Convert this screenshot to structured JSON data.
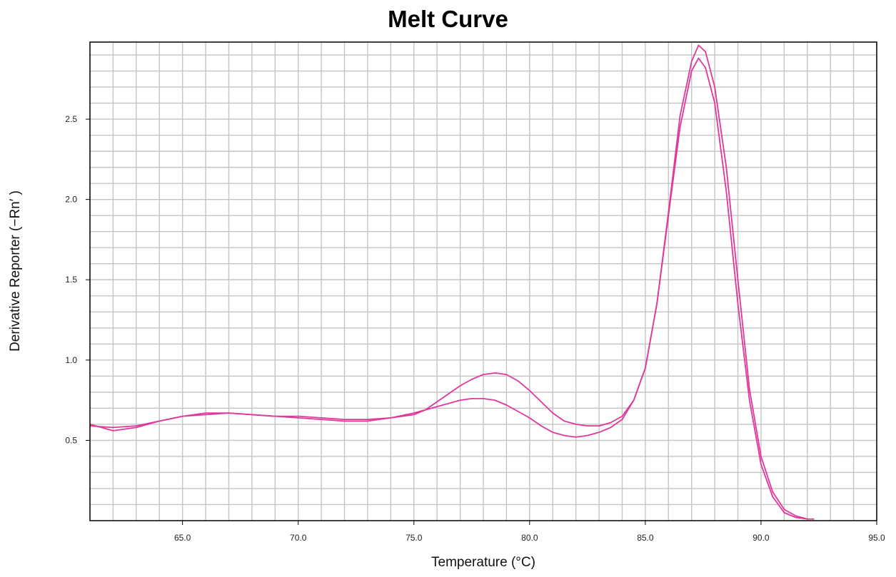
{
  "chart_data": {
    "type": "line",
    "title": "Melt Curve",
    "xlabel": "Temperature (°C)",
    "ylabel": "Derivative Reporter (−Rn′ )",
    "xlim": [
      61.0,
      95.0
    ],
    "ylim": [
      0.0,
      2.98
    ],
    "xticks": [
      65.0,
      70.0,
      75.0,
      80.0,
      85.0,
      90.0,
      95.0
    ],
    "xtick_labels": [
      "65.0",
      "70.0",
      "75.0",
      "80.0",
      "85.0",
      "90.0",
      "95.0"
    ],
    "yticks": [
      0.5,
      1.0,
      1.5,
      2.0,
      2.5
    ],
    "ytick_labels": [
      "0.5",
      "1.0",
      "1.5",
      "2.0",
      "2.5"
    ],
    "grid": true,
    "line_color": "#e0389a",
    "series": [
      {
        "x": [
          61.0,
          62.0,
          63.0,
          64.0,
          65.0,
          66.0,
          67.0,
          68.0,
          69.0,
          70.0,
          71.0,
          72.0,
          73.0,
          74.0,
          75.0,
          75.5,
          76.0,
          76.5,
          77.0,
          77.5,
          78.0,
          78.5,
          79.0,
          79.5,
          80.0,
          80.5,
          81.0,
          81.5,
          82.0,
          82.5,
          83.0,
          83.5,
          84.0,
          84.5,
          85.0,
          85.5,
          86.0,
          86.5,
          87.0,
          87.3,
          87.6,
          88.0,
          88.5,
          89.0,
          89.5,
          90.0,
          90.5,
          91.0,
          91.5,
          92.0
        ],
        "y": [
          0.6,
          0.56,
          0.58,
          0.62,
          0.65,
          0.66,
          0.67,
          0.66,
          0.65,
          0.64,
          0.63,
          0.62,
          0.62,
          0.64,
          0.67,
          0.69,
          0.71,
          0.73,
          0.75,
          0.76,
          0.76,
          0.75,
          0.72,
          0.68,
          0.64,
          0.59,
          0.55,
          0.53,
          0.52,
          0.53,
          0.55,
          0.58,
          0.63,
          0.75,
          0.95,
          1.35,
          1.9,
          2.45,
          2.8,
          2.88,
          2.82,
          2.6,
          2.05,
          1.35,
          0.75,
          0.35,
          0.15,
          0.05,
          0.02,
          0.01
        ]
      },
      {
        "x": [
          61.0,
          62.0,
          63.0,
          64.0,
          65.0,
          66.0,
          67.0,
          68.0,
          69.0,
          70.0,
          71.0,
          72.0,
          73.0,
          74.0,
          75.0,
          75.5,
          76.0,
          76.5,
          77.0,
          77.5,
          78.0,
          78.5,
          79.0,
          79.5,
          80.0,
          80.5,
          81.0,
          81.5,
          82.0,
          82.5,
          83.0,
          83.5,
          84.0,
          84.5,
          85.0,
          85.5,
          86.0,
          86.5,
          87.0,
          87.3,
          87.6,
          88.0,
          88.5,
          89.0,
          89.5,
          90.0,
          90.5,
          91.0,
          91.5,
          92.0,
          92.3
        ],
        "y": [
          0.59,
          0.58,
          0.59,
          0.62,
          0.65,
          0.67,
          0.67,
          0.66,
          0.65,
          0.65,
          0.64,
          0.63,
          0.63,
          0.64,
          0.66,
          0.69,
          0.74,
          0.79,
          0.84,
          0.88,
          0.91,
          0.92,
          0.91,
          0.87,
          0.81,
          0.74,
          0.67,
          0.62,
          0.6,
          0.59,
          0.59,
          0.61,
          0.65,
          0.75,
          0.95,
          1.35,
          1.92,
          2.52,
          2.86,
          2.96,
          2.92,
          2.7,
          2.2,
          1.5,
          0.82,
          0.4,
          0.18,
          0.07,
          0.03,
          0.01,
          0.01
        ]
      }
    ]
  }
}
